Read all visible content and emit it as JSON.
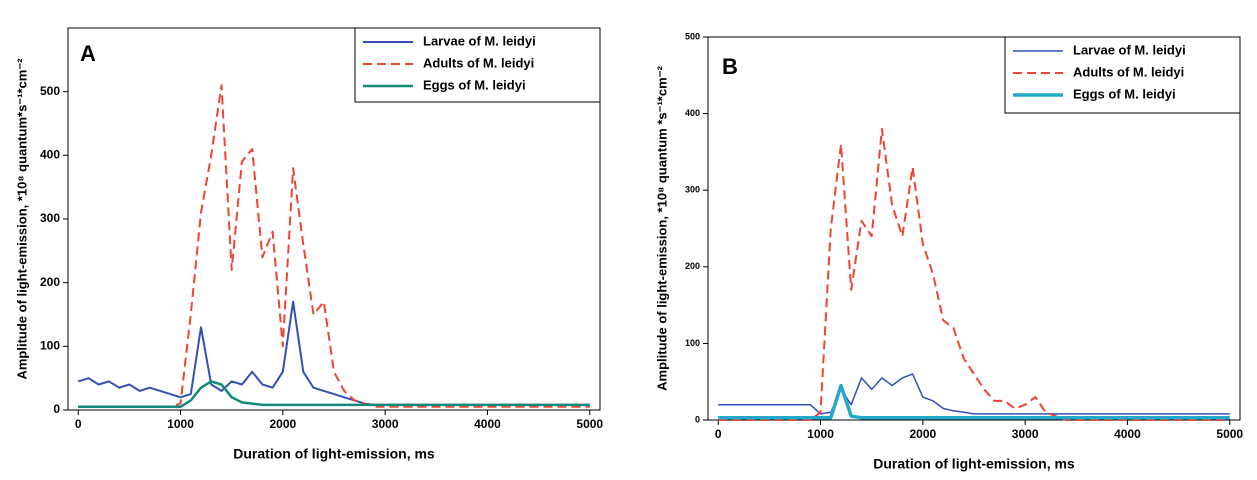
{
  "chart_data": [
    {
      "type": "line",
      "panel_label": "A",
      "x_label": "Duration of light-emission, ms",
      "y_label": "Amplitude of light-emission, *10⁸ quantum*s⁻¹*cm⁻²",
      "x": [
        0,
        100,
        200,
        300,
        400,
        500,
        600,
        700,
        800,
        900,
        1000,
        1100,
        1200,
        1300,
        1400,
        1500,
        1600,
        1700,
        1800,
        1900,
        2000,
        2100,
        2200,
        2300,
        2400,
        2500,
        2600,
        2700,
        2800,
        2900,
        3000,
        3100,
        3200,
        3300,
        3400,
        3500,
        3600,
        3700,
        3800,
        3900,
        4000,
        4100,
        4200,
        4300,
        4400,
        4500,
        4600,
        4700,
        4800,
        4900,
        5000
      ],
      "xlim": [
        -100,
        5100
      ],
      "xticks": [
        0,
        1000,
        2000,
        3000,
        4000,
        5000
      ],
      "ylim": [
        0,
        600
      ],
      "yticks": [
        0,
        100,
        200,
        300,
        400,
        500
      ],
      "series": [
        {
          "name": "Larvae of M. leidyi",
          "color": "#3450b8",
          "width": 2,
          "dashed": false,
          "values": [
            45,
            50,
            40,
            45,
            35,
            40,
            30,
            35,
            30,
            25,
            20,
            25,
            130,
            40,
            30,
            45,
            40,
            60,
            40,
            35,
            60,
            170,
            60,
            35,
            30,
            25,
            20,
            15,
            10,
            8,
            8,
            8,
            8,
            8,
            8,
            8,
            8,
            8,
            8,
            8,
            8,
            8,
            8,
            8,
            8,
            8,
            8,
            8,
            8,
            8,
            8
          ]
        },
        {
          "name": "Adults of M. leidyi",
          "color": "#ee4433",
          "width": 2,
          "dashed": true,
          "values": [
            5,
            5,
            5,
            5,
            5,
            5,
            5,
            5,
            5,
            5,
            10,
            150,
            310,
            400,
            510,
            220,
            390,
            410,
            240,
            280,
            100,
            380,
            260,
            150,
            170,
            60,
            30,
            15,
            10,
            5,
            5,
            5,
            5,
            5,
            5,
            5,
            5,
            5,
            5,
            5,
            5,
            5,
            5,
            5,
            5,
            5,
            5,
            5,
            5,
            5,
            5
          ]
        },
        {
          "name": "Eggs of M. leidyi",
          "color": "#138a78",
          "width": 2.5,
          "dashed": false,
          "values": [
            5,
            5,
            5,
            5,
            5,
            5,
            5,
            5,
            5,
            5,
            5,
            15,
            35,
            45,
            40,
            20,
            12,
            10,
            8,
            8,
            8,
            8,
            8,
            8,
            8,
            8,
            8,
            8,
            8,
            8,
            8,
            8,
            8,
            8,
            8,
            8,
            8,
            8,
            8,
            8,
            8,
            8,
            8,
            8,
            8,
            8,
            8,
            8,
            8,
            8,
            8
          ]
        }
      ]
    },
    {
      "type": "line",
      "panel_label": "B",
      "x_label": "Duration of light-emission, ms",
      "y_label": "Amplitude of light-emission, *10⁸ quantum *s⁻¹*cm⁻²",
      "x": [
        0,
        100,
        200,
        300,
        400,
        500,
        600,
        700,
        800,
        900,
        1000,
        1100,
        1200,
        1300,
        1400,
        1500,
        1600,
        1700,
        1800,
        1900,
        2000,
        2100,
        2200,
        2300,
        2400,
        2500,
        2600,
        2700,
        2800,
        2900,
        3000,
        3100,
        3200,
        3300,
        3400,
        3500,
        3600,
        3700,
        3800,
        3900,
        4000,
        4100,
        4200,
        4300,
        4400,
        4500,
        4600,
        4700,
        4800,
        4900,
        5000
      ],
      "xlim": [
        -100,
        5100
      ],
      "xticks": [
        0,
        1000,
        2000,
        3000,
        4000,
        5000
      ],
      "ylim": [
        0,
        500
      ],
      "yticks": [
        0,
        100,
        200,
        300,
        400,
        500
      ],
      "series": [
        {
          "name": "Larvae of M. leidyi",
          "color": "#3450b8",
          "width": 1.5,
          "dashed": false,
          "values": [
            20,
            20,
            20,
            20,
            20,
            20,
            20,
            20,
            20,
            20,
            8,
            10,
            40,
            20,
            55,
            40,
            55,
            45,
            55,
            60,
            30,
            25,
            15,
            12,
            10,
            8,
            8,
            8,
            8,
            8,
            8,
            8,
            8,
            8,
            8,
            8,
            8,
            8,
            8,
            8,
            8,
            8,
            8,
            8,
            8,
            8,
            8,
            8,
            8,
            8,
            8
          ]
        },
        {
          "name": "Adults of M. leidyi",
          "color": "#ee4433",
          "width": 2,
          "dashed": true,
          "values": [
            0,
            0,
            0,
            0,
            0,
            0,
            0,
            0,
            0,
            0,
            10,
            250,
            360,
            170,
            260,
            240,
            380,
            280,
            240,
            330,
            230,
            190,
            130,
            120,
            80,
            60,
            40,
            25,
            25,
            15,
            20,
            30,
            10,
            5,
            0,
            0,
            0,
            0,
            0,
            0,
            0,
            0,
            0,
            0,
            0,
            0,
            0,
            0,
            0,
            0,
            0
          ]
        },
        {
          "name": "Eggs of M. leidyi",
          "color": "#22a8c8",
          "width": 3.5,
          "dashed": false,
          "values": [
            3,
            3,
            3,
            3,
            3,
            3,
            3,
            3,
            3,
            3,
            3,
            3,
            45,
            5,
            3,
            3,
            3,
            3,
            3,
            3,
            3,
            3,
            3,
            3,
            3,
            3,
            3,
            3,
            3,
            3,
            3,
            3,
            3,
            3,
            3,
            3,
            3,
            3,
            3,
            3,
            3,
            3,
            3,
            3,
            3,
            3,
            3,
            3,
            3,
            3,
            3
          ]
        }
      ]
    }
  ]
}
